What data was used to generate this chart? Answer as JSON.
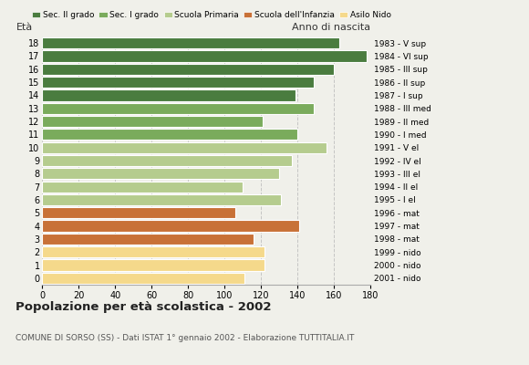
{
  "ages": [
    18,
    17,
    16,
    15,
    14,
    13,
    12,
    11,
    10,
    9,
    8,
    7,
    6,
    5,
    4,
    3,
    2,
    1,
    0
  ],
  "values": [
    163,
    178,
    160,
    149,
    139,
    149,
    121,
    140,
    156,
    137,
    130,
    110,
    131,
    106,
    141,
    116,
    122,
    122,
    111
  ],
  "right_labels": [
    "1983 - V sup",
    "1984 - VI sup",
    "1985 - III sup",
    "1986 - II sup",
    "1987 - I sup",
    "1988 - III med",
    "1989 - II med",
    "1990 - I med",
    "1991 - V el",
    "1992 - IV el",
    "1993 - III el",
    "1994 - II el",
    "1995 - I el",
    "1996 - mat",
    "1997 - mat",
    "1998 - mat",
    "1999 - nido",
    "2000 - nido",
    "2001 - nido"
  ],
  "bar_colors": [
    "#4a7c3f",
    "#4a7c3f",
    "#4a7c3f",
    "#4a7c3f",
    "#4a7c3f",
    "#7aab5c",
    "#7aab5c",
    "#7aab5c",
    "#b5cc8e",
    "#b5cc8e",
    "#b5cc8e",
    "#b5cc8e",
    "#b5cc8e",
    "#c87137",
    "#c87137",
    "#c87137",
    "#f5d98b",
    "#f5d98b",
    "#f5d98b"
  ],
  "legend_labels": [
    "Sec. II grado",
    "Sec. I grado",
    "Scuola Primaria",
    "Scuola dell'Infanzia",
    "Asilo Nido"
  ],
  "legend_colors": [
    "#4a7c3f",
    "#7aab5c",
    "#b5cc8e",
    "#c87137",
    "#f5d98b"
  ],
  "title": "Popolazione per età scolastica - 2002",
  "subtitle": "COMUNE DI SORSO (SS) - Dati ISTAT 1° gennaio 2002 - Elaborazione TUTTITALIA.IT",
  "ylabel_left": "Età",
  "ylabel_right": "Anno di nascita",
  "xlim": [
    0,
    180
  ],
  "xticks": [
    0,
    20,
    40,
    60,
    80,
    100,
    120,
    140,
    160,
    180
  ],
  "background_color": "#f0f0ea",
  "grid_color": "#bbbbbb",
  "dashed_lines": [
    120,
    160
  ]
}
